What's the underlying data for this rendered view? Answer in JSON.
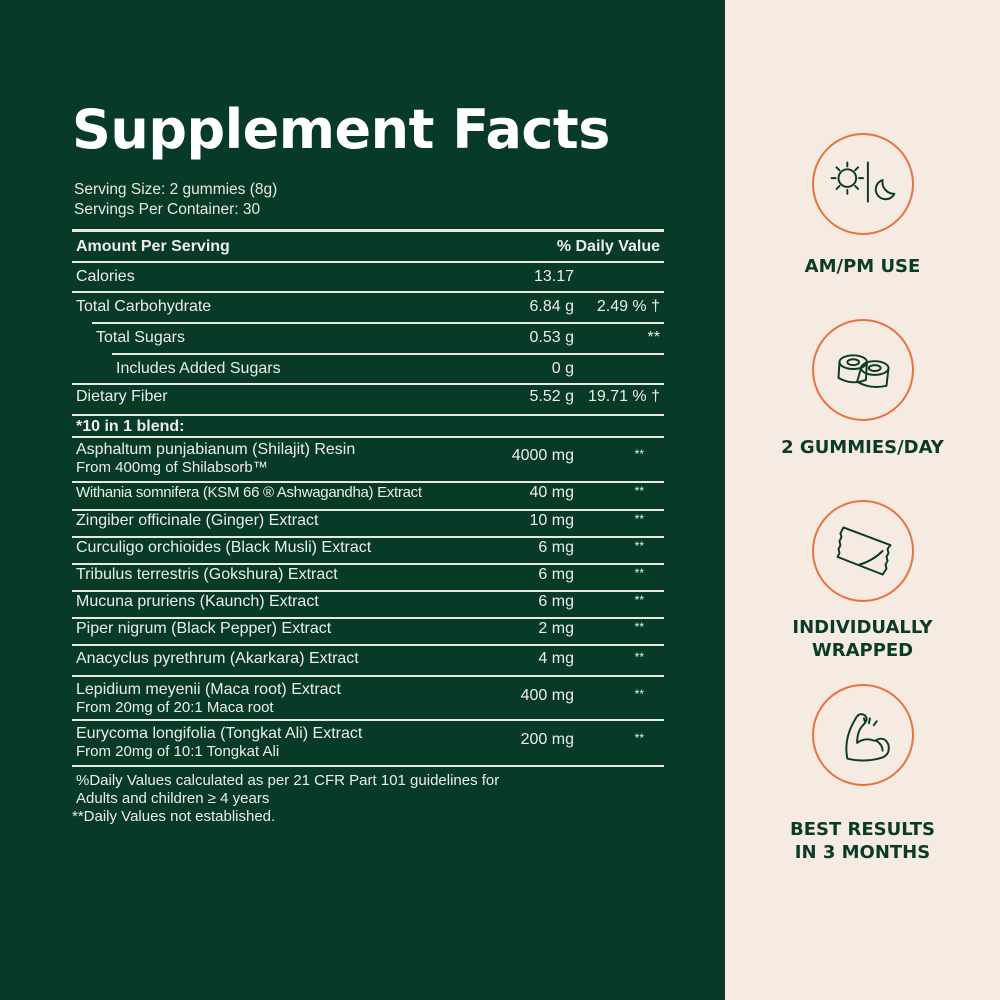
{
  "title": "Supplement Facts",
  "serving_size": "Serving Size: 2 gummies (8g)",
  "servings_per_container": "Servings Per Container: 30",
  "header": {
    "amount": "Amount Per Serving",
    "dv": "% Daily Value"
  },
  "rows": [
    {
      "name": "Calories",
      "amount": "13.17",
      "dv": ""
    },
    {
      "name": "Total Carbohydrate",
      "amount": "6.84 g",
      "dv": "2.49 % †"
    },
    {
      "name": "Total Sugars",
      "amount": "0.53 g",
      "dv": "**",
      "indent": 1
    },
    {
      "name": "Includes Added Sugars",
      "amount": "0 g",
      "dv": "",
      "indent": 2
    },
    {
      "name": "Dietary Fiber",
      "amount": "5.52 g",
      "dv": "19.71 % †"
    }
  ],
  "blend_label": "*10 in 1 blend:",
  "ingredients": [
    {
      "name": "Asphaltum punjabianum (Shilajit) Resin",
      "sub": "From 400mg of Shilabsorb™",
      "amount": "4000 mg",
      "dv": "**"
    },
    {
      "name": "Withania somnifera (KSM 66 ® Ashwagandha) Extract",
      "amount": "40 mg",
      "dv": "**"
    },
    {
      "name": "Zingiber officinale (Ginger) Extract",
      "amount": "10 mg",
      "dv": "**"
    },
    {
      "name": "Curculigo orchioides (Black Musli) Extract",
      "amount": "6 mg",
      "dv": "**"
    },
    {
      "name": "Tribulus terrestris (Gokshura) Extract",
      "amount": "6 mg",
      "dv": "**"
    },
    {
      "name": "Mucuna pruriens (Kaunch) Extract",
      "amount": "6 mg",
      "dv": "**"
    },
    {
      "name": "Piper nigrum (Black Pepper) Extract",
      "amount": "2 mg",
      "dv": "**"
    },
    {
      "name": "Anacyclus pyrethrum (Akarkara) Extract",
      "amount": "4 mg",
      "dv": "**"
    },
    {
      "name": "Lepidium meyenii (Maca root) Extract",
      "sub": "From 20mg of 20:1 Maca root",
      "amount": "400 mg",
      "dv": "**"
    },
    {
      "name": "Eurycoma longifolia (Tongkat Ali) Extract",
      "sub": "From 20mg of 10:1 Tongkat Ali",
      "amount": "200 mg",
      "dv": "**"
    }
  ],
  "footnotes": [
    "%Daily Values calculated as per 21 CFR Part 101 guidelines for",
    "Adults and children ≥ 4 years",
    "**Daily Values not established."
  ],
  "features": [
    {
      "icon": "sun-moon-icon",
      "label": [
        "AM/PM USE"
      ]
    },
    {
      "icon": "gummies-icon",
      "label": [
        "2 GUMMIES/DAY"
      ]
    },
    {
      "icon": "wrapper-icon",
      "label": [
        "INDIVIDUALLY",
        "WRAPPED"
      ]
    },
    {
      "icon": "flexed-arm-icon",
      "label": [
        "BEST RESULTS",
        "IN 3 MONTHS"
      ]
    }
  ],
  "colors": {
    "green": "#083a28",
    "beige": "#f5ebe3",
    "accent": "#e8733f"
  }
}
